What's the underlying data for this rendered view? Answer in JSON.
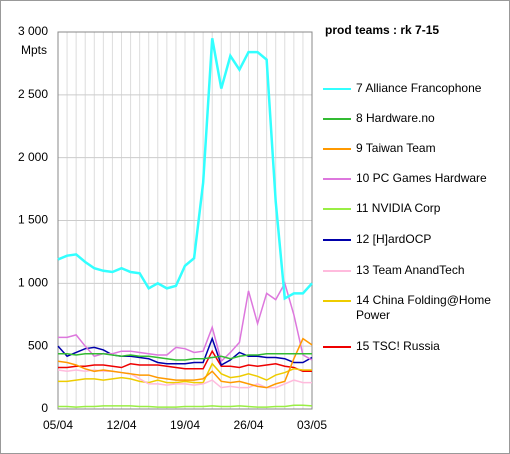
{
  "chart_data": {
    "type": "line",
    "legend_title": "prod teams :  rk 7-15",
    "y_label": "Mpts",
    "categories": [
      "05/04",
      null,
      null,
      null,
      null,
      null,
      null,
      "12/04",
      null,
      null,
      null,
      null,
      null,
      null,
      "19/04",
      null,
      null,
      null,
      null,
      null,
      null,
      "26/04",
      null,
      null,
      null,
      null,
      null,
      null,
      "03/05"
    ],
    "ylim": [
      0,
      3000
    ],
    "yticks": [
      0,
      500,
      {
        "value": 1000,
        "label": "1 000"
      },
      {
        "value": 1500,
        "label": "1 500"
      },
      {
        "value": 2000,
        "label": "2 000"
      },
      {
        "value": 2500,
        "label": "2 500"
      },
      {
        "value": 3000,
        "label": "3 000"
      }
    ],
    "grid": true,
    "series": [
      {
        "name": "7 Alliance Francophone",
        "color": "#33ffff",
        "values": [
          1190,
          1220,
          1230,
          1170,
          1120,
          1100,
          1090,
          1120,
          1090,
          1080,
          960,
          1000,
          960,
          980,
          1140,
          1200,
          1800,
          2950,
          2550,
          2810,
          2700,
          2840,
          2840,
          2780,
          1650,
          880,
          920,
          920,
          1000
        ]
      },
      {
        "name": "8 Hardware.no",
        "color": "#33bb33",
        "values": [
          440,
          440,
          430,
          440,
          440,
          440,
          430,
          420,
          430,
          420,
          420,
          410,
          400,
          390,
          390,
          400,
          400,
          410,
          420,
          400,
          420,
          430,
          430,
          440,
          440,
          440,
          440,
          440,
          440
        ]
      },
      {
        "name": "9 Taiwan Team",
        "color": "#ff9900",
        "values": [
          380,
          370,
          350,
          320,
          300,
          310,
          300,
          290,
          280,
          270,
          270,
          250,
          240,
          230,
          230,
          230,
          240,
          300,
          220,
          210,
          220,
          200,
          180,
          170,
          200,
          220,
          400,
          560,
          510
        ]
      },
      {
        "name": "10 PC Games Hardware",
        "color": "#dd77dd",
        "values": [
          570,
          570,
          590,
          500,
          420,
          440,
          440,
          460,
          460,
          450,
          440,
          430,
          430,
          490,
          480,
          450,
          460,
          650,
          380,
          450,
          530,
          940,
          680,
          920,
          870,
          1000,
          750,
          430,
          390
        ]
      },
      {
        "name": "11 NVIDIA Corp",
        "color": "#99ee44",
        "values": [
          20,
          20,
          15,
          20,
          20,
          25,
          25,
          25,
          25,
          20,
          20,
          15,
          15,
          15,
          20,
          20,
          20,
          25,
          20,
          20,
          25,
          20,
          15,
          15,
          20,
          20,
          30,
          30,
          25
        ]
      },
      {
        "name": "12 [H]ardOCP",
        "color": "#0000aa",
        "values": [
          500,
          420,
          450,
          480,
          490,
          470,
          430,
          420,
          420,
          410,
          400,
          370,
          360,
          360,
          360,
          370,
          370,
          560,
          350,
          390,
          450,
          420,
          420,
          410,
          410,
          400,
          370,
          370,
          410
        ]
      },
      {
        "name": "13 Team AnandTech",
        "color": "#ffbbdd",
        "values": [
          310,
          300,
          310,
          300,
          310,
          300,
          300,
          290,
          280,
          240,
          200,
          200,
          190,
          200,
          200,
          190,
          200,
          230,
          170,
          180,
          170,
          170,
          200,
          170,
          170,
          200,
          230,
          210,
          210
        ]
      },
      {
        "name": "14 China Folding@Home Power",
        "color": "#eecc00",
        "values": [
          220,
          220,
          230,
          240,
          240,
          230,
          240,
          250,
          240,
          220,
          210,
          230,
          210,
          210,
          220,
          210,
          210,
          360,
          280,
          250,
          260,
          280,
          260,
          230,
          270,
          290,
          320,
          310,
          310
        ]
      },
      {
        "name": "15 TSC! Russia",
        "color": "#ee0000",
        "values": [
          330,
          330,
          340,
          340,
          350,
          350,
          340,
          330,
          360,
          350,
          350,
          350,
          340,
          330,
          320,
          320,
          320,
          460,
          340,
          340,
          330,
          350,
          340,
          350,
          360,
          340,
          330,
          300,
          300
        ]
      }
    ]
  }
}
